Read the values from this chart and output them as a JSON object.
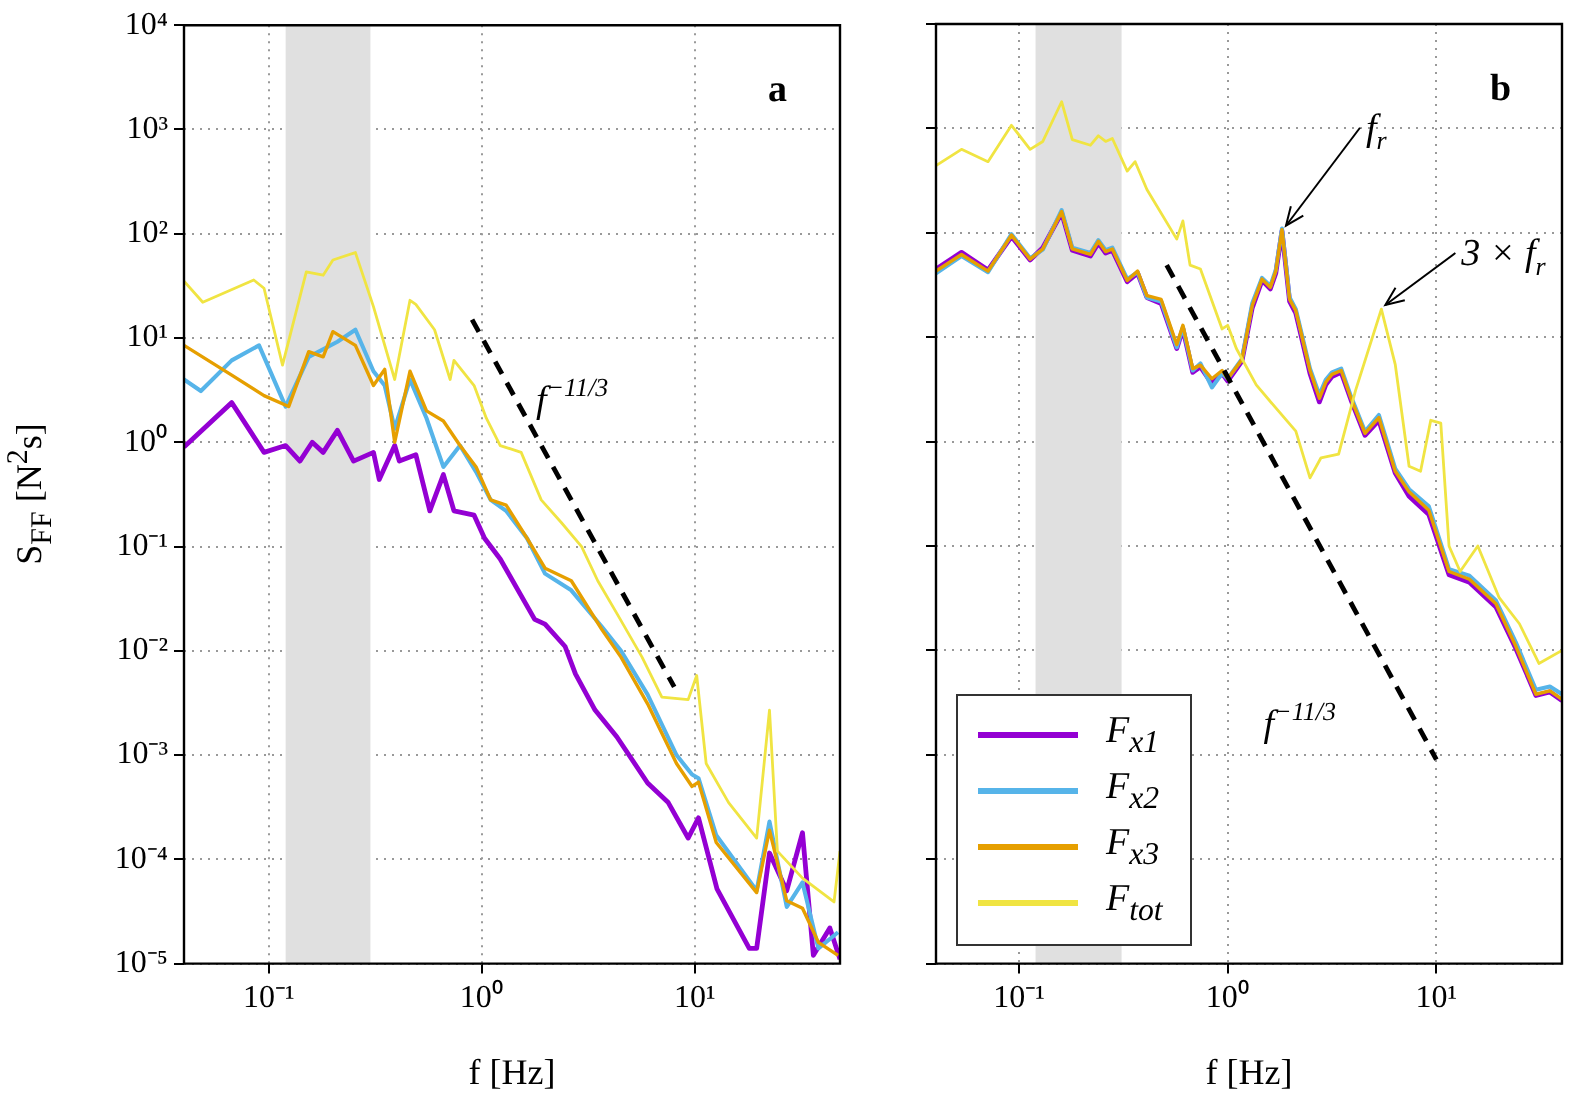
{
  "chart_data": [
    {
      "type": "line",
      "xlabel": "f [Hz]",
      "ylabel": "S$_{FF}$ [N$^{2}$s]",
      "log": "xy",
      "grid": true,
      "marker": "none",
      "xlim": [
        0.04,
        48
      ],
      "xticks": [
        {
          "value": 0.1,
          "label": "10⁻¹"
        },
        {
          "value": 1,
          "label": "10⁰"
        },
        {
          "value": 10,
          "label": "10¹"
        }
      ],
      "ylim": [
        1e-05,
        10000
      ],
      "yticks": [
        {
          "value": 1e-05,
          "label": "10⁻⁵"
        },
        {
          "value": 0.0001,
          "label": "10⁻⁴"
        },
        {
          "value": 0.001,
          "label": "10⁻³"
        },
        {
          "value": 0.01,
          "label": "10⁻²"
        },
        {
          "value": 0.1,
          "label": "10⁻¹"
        },
        {
          "value": 1,
          "label": "10⁰"
        },
        {
          "value": 10,
          "label": "10¹"
        },
        {
          "value": 100,
          "label": "10²"
        },
        {
          "value": 1000,
          "label": "10³"
        },
        {
          "value": 10000,
          "label": "10⁴"
        }
      ],
      "bands": [
        {
          "axis": "x",
          "from": 0.12,
          "to": 0.3,
          "color": "#e0e0e0"
        }
      ],
      "annotations": [
        "a",
        {
          "text": "f$^{−11/3}$",
          "x": 2,
          "y": 0.8
        }
      ],
      "series": [
        {
          "color": "#9400d3",
          "x": [
            0.04,
            0.067,
            0.095,
            0.12,
            0.14,
            0.16,
            0.18,
            0.21,
            0.25,
            0.31,
            0.33,
            0.39,
            0.41,
            0.49,
            0.57,
            0.66,
            0.74,
            0.92,
            1.03,
            1.22,
            1.77,
            1.98,
            2.46,
            2.75,
            3.4,
            4.3,
            6,
            7.5,
            9.3,
            10.4,
            12.7,
            18,
            19.5,
            22.4,
            27,
            32,
            36,
            43,
            48
          ],
          "values": [
            0.9,
            2.4,
            0.8,
            0.93,
            0.66,
            1.0,
            0.8,
            1.3,
            0.66,
            0.8,
            0.44,
            0.93,
            0.66,
            0.76,
            0.22,
            0.49,
            0.22,
            0.2,
            0.12,
            0.076,
            0.02,
            0.018,
            0.011,
            0.006,
            0.0027,
            0.0015,
            0.00054,
            0.00035,
            0.00016,
            0.00025,
            5.2e-05,
            1.4e-05,
            1.4e-05,
            0.000115,
            5e-05,
            0.00018,
            1.2e-05,
            2.2e-05,
            1.1e-05
          ]
        },
        {
          "color": "#56b4e9",
          "x": [
            0.04,
            0.048,
            0.067,
            0.09,
            0.12,
            0.154,
            0.21,
            0.255,
            0.31,
            0.35,
            0.39,
            0.46,
            0.55,
            0.66,
            0.79,
            0.94,
            1.1,
            1.3,
            1.63,
            1.98,
            2.63,
            3.66,
            4.5,
            6,
            8.2,
            9.7,
            10.4,
            12.6,
            19.5,
            22.4,
            27,
            32,
            38,
            47
          ],
          "values": [
            4.0,
            3.1,
            6.1,
            8.5,
            2.2,
            6.6,
            9.2,
            12,
            4.8,
            3.5,
            1.35,
            4.0,
            1.7,
            0.58,
            0.93,
            0.52,
            0.28,
            0.22,
            0.12,
            0.055,
            0.038,
            0.017,
            0.01,
            0.0038,
            0.001,
            0.00065,
            0.0006,
            0.00017,
            5e-05,
            0.00023,
            3.5e-05,
            6e-05,
            1.4e-05,
            2e-05
          ]
        },
        {
          "color": "#e69f00",
          "x": [
            0.04,
            0.067,
            0.095,
            0.124,
            0.154,
            0.18,
            0.2,
            0.255,
            0.31,
            0.35,
            0.39,
            0.46,
            0.55,
            0.66,
            0.79,
            0.94,
            1.1,
            1.3,
            1.63,
            1.98,
            2.63,
            3.66,
            4.5,
            6,
            8.2,
            9.7,
            10.4,
            12.6,
            19.5,
            22.4,
            27,
            32,
            38,
            47
          ],
          "values": [
            8.5,
            4.4,
            2.8,
            2.2,
            7.4,
            6.6,
            11.5,
            8.5,
            3.5,
            5,
            1.0,
            4.8,
            2.0,
            1.6,
            0.93,
            0.58,
            0.28,
            0.25,
            0.12,
            0.062,
            0.047,
            0.016,
            0.0087,
            0.0031,
            0.00083,
            0.0005,
            0.00055,
            0.000145,
            4.8e-05,
            0.00019,
            4e-05,
            3.4e-05,
            1.6e-05,
            1.2e-05
          ]
        },
        {
          "color": "#f0e442",
          "x": [
            0.04,
            0.049,
            0.085,
            0.095,
            0.116,
            0.15,
            0.18,
            0.2,
            0.255,
            0.31,
            0.39,
            0.46,
            0.49,
            0.6,
            0.71,
            0.74,
            0.92,
            1.05,
            1.22,
            1.53,
            1.9,
            2.36,
            2.94,
            3.5,
            4.35,
            5.65,
            7,
            9.3,
            10.2,
            11.3,
            14.4,
            19.5,
            22.4,
            24.4,
            32,
            45,
            48
          ],
          "values": [
            35,
            22,
            36,
            30,
            5.5,
            43,
            40,
            56,
            66,
            20,
            4.0,
            23,
            21,
            12,
            4,
            6.1,
            3.5,
            1.7,
            0.93,
            0.8,
            0.28,
            0.17,
            0.1,
            0.047,
            0.022,
            0.0087,
            0.0036,
            0.0034,
            0.0058,
            0.00083,
            0.00035,
            0.00016,
            0.0027,
            0.00012,
            6.6e-05,
            3.9e-05,
            0.00012
          ]
        },
        {
          "type": "line",
          "color": "#000000",
          "line_style": "dashed",
          "x": [
            0.9,
            8
          ],
          "values": [
            15,
            0.0045
          ]
        }
      ]
    },
    {
      "type": "line",
      "xlabel": "f [Hz]",
      "log": "xy",
      "grid": true,
      "marker": "none",
      "legend": "bottom left",
      "tick_labels": "x",
      "xlim": [
        0.04,
        40
      ],
      "xticks": [
        {
          "value": 0.1,
          "label": "10⁻¹"
        },
        {
          "value": 1,
          "label": "10⁰"
        },
        {
          "value": 10,
          "label": "10¹"
        }
      ],
      "ylim": [
        1e-05,
        10000
      ],
      "yticks": [
        {
          "value": 1e-05,
          "label": null
        },
        {
          "value": 0.0001,
          "label": null
        },
        {
          "value": 0.001,
          "label": null
        },
        {
          "value": 0.01,
          "label": null
        },
        {
          "value": 0.1,
          "label": null
        },
        {
          "value": 1,
          "label": null
        },
        {
          "value": 10,
          "label": null
        },
        {
          "value": 100,
          "label": null
        },
        {
          "value": 1000,
          "label": null
        },
        {
          "value": 10000,
          "label": null
        }
      ],
      "bands": [
        {
          "axis": "x",
          "from": 0.12,
          "to": 0.31,
          "color": "#e0e0e0"
        }
      ],
      "annotations": [
        "b",
        {
          "text": "f$_{r}$",
          "x": 1.82,
          "y": 107
        },
        {
          "text": "3 × f$_{r}$",
          "x": 5.45,
          "y": 18.6
        },
        {
          "text": "f$^{−11/3}$",
          "x": 5,
          "y": 0.011
        }
      ],
      "series": [
        {
          "name": "F$_{x1}$",
          "color": "#9400d3",
          "x": [
            0.04,
            0.053,
            0.071,
            0.092,
            0.113,
            0.13,
            0.16,
            0.18,
            0.22,
            0.24,
            0.26,
            0.28,
            0.33,
            0.37,
            0.41,
            0.48,
            0.57,
            0.61,
            0.68,
            0.74,
            0.84,
            0.94,
            1.0,
            1.17,
            1.31,
            1.46,
            1.6,
            1.7,
            1.82,
            1.98,
            2.12,
            2.48,
            2.75,
            2.95,
            3.16,
            3.5,
            3.9,
            4.55,
            5.3,
            6.35,
            7.4,
            9.2,
            11.5,
            14.4,
            19.3,
            24,
            30,
            35,
            40
          ],
          "values": [
            45,
            65,
            44,
            92,
            55,
            72,
            155,
            68,
            60,
            80,
            64,
            68,
            34,
            41,
            24,
            21,
            7.8,
            12,
            4.6,
            5.2,
            3.6,
            4.5,
            3.8,
            5.9,
            19,
            35,
            29,
            41,
            104,
            22,
            17,
            4.5,
            2.4,
            3.5,
            4.2,
            4.6,
            2.5,
            1.15,
            1.6,
            0.5,
            0.3,
            0.2,
            0.053,
            0.045,
            0.026,
            0.0105,
            0.0037,
            0.004,
            0.0033
          ]
        },
        {
          "name": "F$_{x2}$",
          "color": "#56b4e9",
          "x": [
            0.04,
            0.053,
            0.071,
            0.092,
            0.113,
            0.13,
            0.16,
            0.18,
            0.22,
            0.24,
            0.26,
            0.28,
            0.33,
            0.37,
            0.41,
            0.48,
            0.57,
            0.61,
            0.68,
            0.74,
            0.84,
            0.94,
            1.0,
            1.17,
            1.31,
            1.46,
            1.6,
            1.7,
            1.82,
            1.98,
            2.12,
            2.48,
            2.75,
            2.95,
            3.16,
            3.5,
            3.9,
            4.55,
            5.3,
            6.35,
            7.4,
            9.2,
            11.5,
            14.4,
            19.3,
            24,
            30,
            35,
            40
          ],
          "values": [
            41,
            60,
            42,
            97,
            57,
            69,
            165,
            72,
            64,
            85,
            68,
            72,
            36,
            42,
            24,
            22,
            8,
            12.5,
            4.8,
            5.6,
            3.3,
            4.5,
            4,
            6.2,
            21,
            37,
            31,
            44,
            110,
            24,
            18.5,
            5,
            2.8,
            3.9,
            4.6,
            5,
            2.7,
            1.25,
            1.8,
            0.55,
            0.35,
            0.24,
            0.06,
            0.052,
            0.03,
            0.012,
            0.0042,
            0.0045,
            0.0038
          ]
        },
        {
          "name": "F$_{x3}$",
          "color": "#e69f00",
          "x": [
            0.04,
            0.053,
            0.071,
            0.092,
            0.113,
            0.13,
            0.16,
            0.18,
            0.22,
            0.24,
            0.26,
            0.28,
            0.33,
            0.37,
            0.41,
            0.48,
            0.57,
            0.61,
            0.68,
            0.74,
            0.84,
            0.94,
            1.0,
            1.17,
            1.31,
            1.46,
            1.6,
            1.7,
            1.82,
            1.98,
            2.12,
            2.48,
            2.75,
            2.95,
            3.16,
            3.5,
            3.9,
            4.55,
            5.3,
            6.35,
            7.4,
            9.2,
            11.5,
            14.4,
            19.3,
            24,
            30,
            35,
            40
          ],
          "values": [
            43,
            62,
            43,
            95,
            56,
            70,
            160,
            70,
            62,
            83,
            66,
            70,
            35,
            43,
            25,
            23,
            8.5,
            13,
            5,
            5.4,
            4,
            4.8,
            4,
            6.1,
            20,
            36,
            30,
            43,
            107,
            23,
            18,
            4.8,
            2.6,
            3.7,
            4.4,
            4.8,
            2.6,
            1.2,
            1.7,
            0.52,
            0.33,
            0.22,
            0.057,
            0.048,
            0.028,
            0.011,
            0.0038,
            0.0041,
            0.0034
          ]
        },
        {
          "name": "F$_{tot}$",
          "color": "#f0e442",
          "x": [
            0.04,
            0.053,
            0.071,
            0.092,
            0.113,
            0.13,
            0.16,
            0.18,
            0.22,
            0.24,
            0.26,
            0.28,
            0.33,
            0.36,
            0.41,
            0.57,
            0.61,
            0.66,
            0.74,
            0.94,
            1.0,
            1.1,
            1.37,
            1.7,
            2.12,
            2.48,
            2.8,
            3.4,
            4.1,
            5.45,
            6.35,
            7.4,
            8.4,
            9.4,
            10.5,
            11.5,
            13,
            15.8,
            20,
            25,
            31,
            40
          ],
          "values": [
            440,
            630,
            480,
            1070,
            630,
            750,
            1800,
            780,
            690,
            850,
            750,
            800,
            390,
            480,
            260,
            87,
            130,
            49,
            45,
            12,
            13,
            7.8,
            3.5,
            2.1,
            1.26,
            0.45,
            0.7,
            0.76,
            3.1,
            18.6,
            5.5,
            0.58,
            0.52,
            1.6,
            1.5,
            0.1,
            0.057,
            0.1,
            0.032,
            0.018,
            0.0075,
            0.01
          ]
        },
        {
          "type": "line",
          "color": "#000000",
          "line_style": "dashed",
          "x": [
            0.51,
            10
          ],
          "values": [
            49,
            0.0009
          ]
        }
      ]
    }
  ]
}
